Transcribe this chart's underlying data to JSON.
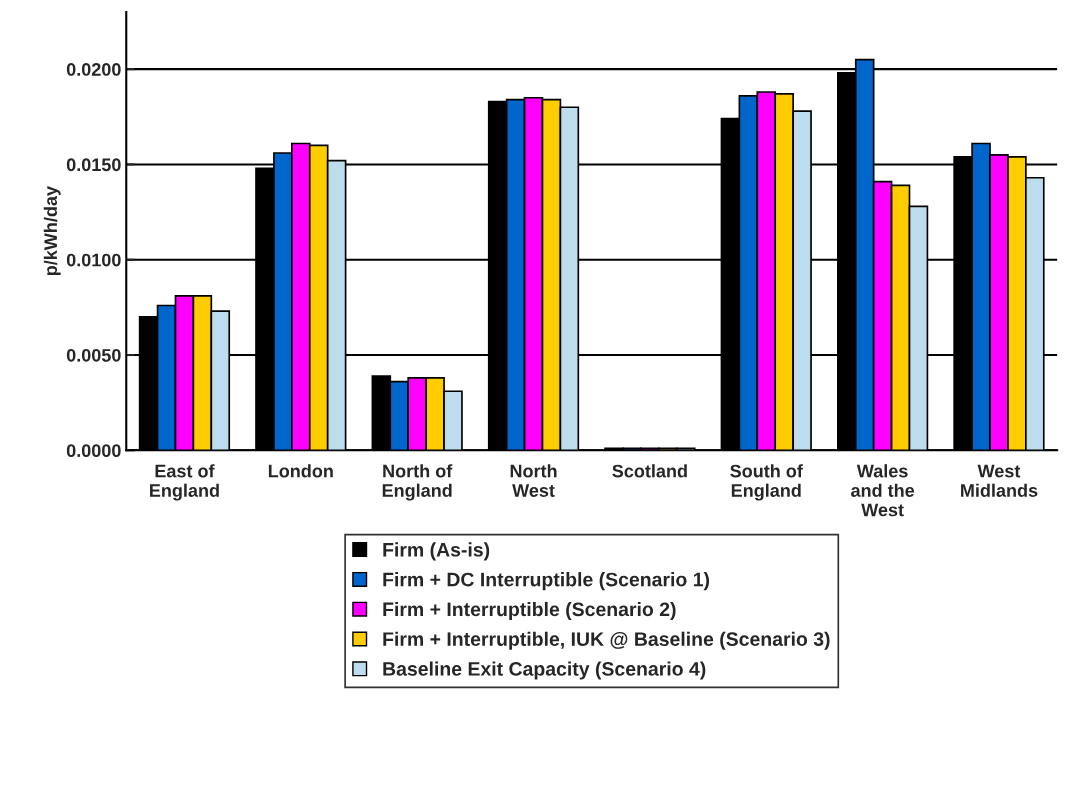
{
  "chart_data": {
    "type": "bar",
    "ylabel": "p/kWh/day",
    "categories": [
      "East of\nEngland",
      "London",
      "North of\nEngland",
      "North\nWest",
      "Scotland",
      "South of\nEngland",
      "Wales\nand the\nWest",
      "West\nMidlands"
    ],
    "series": [
      {
        "name": "Firm (As-is)",
        "color": "#000000",
        "values": [
          0.007,
          0.0148,
          0.0039,
          0.0183,
          0.0001,
          0.0174,
          0.0198,
          0.0154
        ]
      },
      {
        "name": "Firm + DC Interruptible (Scenario 1)",
        "color": "#0066cc",
        "values": [
          0.0076,
          0.0156,
          0.0036,
          0.0184,
          0.0001,
          0.0186,
          0.0205,
          0.0161
        ]
      },
      {
        "name": "Firm + Interruptible (Scenario 2)",
        "color": "#ff00ff",
        "values": [
          0.0081,
          0.0161,
          0.0038,
          0.0185,
          0.0001,
          0.0188,
          0.0141,
          0.0155
        ]
      },
      {
        "name": "Firm + Interruptible, IUK @ Baseline (Scenario 3)",
        "color": "#ffcc00",
        "values": [
          0.0081,
          0.016,
          0.0038,
          0.0184,
          0.0001,
          0.0187,
          0.0139,
          0.0154
        ]
      },
      {
        "name": "Baseline Exit Capacity (Scenario 4)",
        "color": "#bddcee",
        "values": [
          0.0073,
          0.0152,
          0.0031,
          0.018,
          0.0001,
          0.0178,
          0.0128,
          0.0143
        ]
      }
    ],
    "ylim": [
      0,
      0.023
    ],
    "yticks": [
      {
        "value": 0,
        "label": "0.0000"
      },
      {
        "value": 0.005,
        "label": "0.0050"
      },
      {
        "value": 0.01,
        "label": "0.0100"
      },
      {
        "value": 0.015,
        "label": "0.0150"
      },
      {
        "value": 0.02,
        "label": "0.0200"
      }
    ],
    "grid": "y",
    "legend": "bottom"
  }
}
